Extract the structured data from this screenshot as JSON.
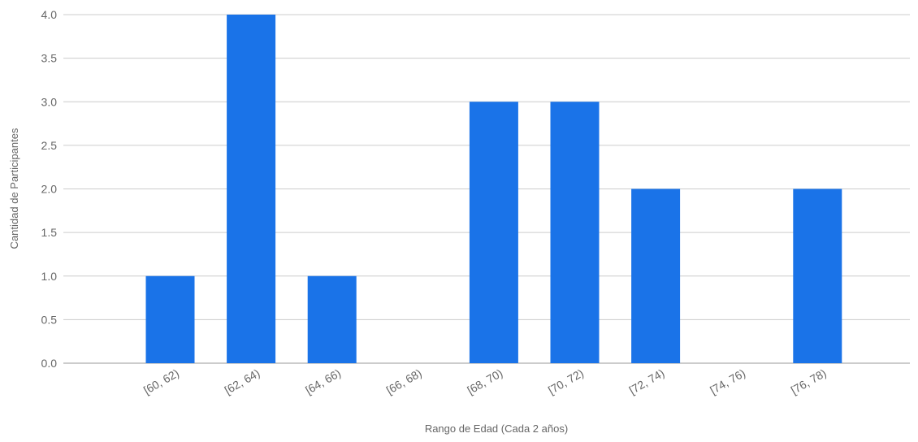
{
  "chart_data": {
    "type": "bar",
    "categories": [
      "[60, 62)",
      "[62, 64)",
      "[64, 66)",
      "[66, 68)",
      "[68, 70)",
      "[70, 72)",
      "[72, 74)",
      "[74, 76)",
      "[76, 78)"
    ],
    "values": [
      1,
      4,
      1,
      0,
      3,
      3,
      2,
      0,
      2
    ],
    "xlabel": "Rango de Edad (Cada 2 años)",
    "ylabel": "Cantidad de Participantes",
    "ylim": [
      0,
      4
    ],
    "yticks": [
      "0.0",
      "0.5",
      "1.0",
      "1.5",
      "2.0",
      "2.5",
      "3.0",
      "3.5",
      "4.0"
    ],
    "grid": true,
    "legend": "none",
    "colors": {
      "bar": "#1a73e8"
    }
  }
}
